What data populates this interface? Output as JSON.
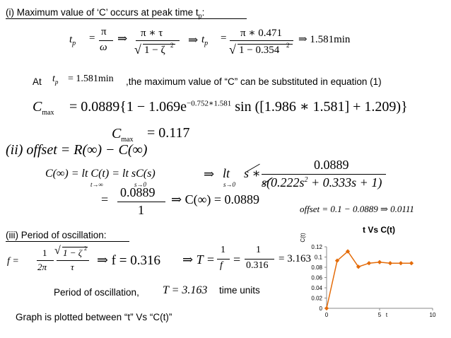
{
  "section1": {
    "heading": "(i) Maximum value of ‘C’ occurs at peak time t",
    "heading_sub": "p",
    "heading_end": ":"
  },
  "eq1": {
    "tp": "t",
    "tp_sub": "p",
    "eq": "=",
    "pi": "π",
    "omega": "ω",
    "arrow": "⇒",
    "pi_tau": "π ∗ τ",
    "one_minus_zeta": "1 − ζ",
    "two": "2"
  },
  "eq2": {
    "arrow": "⇒",
    "tp": "t",
    "tp_sub": "p",
    "eq": "=",
    "numerator": "π ∗ 0.471",
    "denominator": "1 − 0.354",
    "two": "2",
    "result": "⇒ 1.581min"
  },
  "at_line": {
    "at": "At",
    "tp": "t",
    "tp_sub": "p",
    "value": "= 1.581min",
    "text": ",the maximum value of “C” can be substituted in equation (1)"
  },
  "cmax_eq": {
    "c": "C",
    "sub": "max",
    "body": "= 0.0889{1 − 1.069e",
    "exponent": "−0.752∗1.581",
    "tail": " sin ([1.986 ∗ 1.581] + 1.209)}"
  },
  "cmax_val": {
    "c": "C",
    "sub": "max",
    "value": "= 0.117"
  },
  "offset_eq": {
    "text": "(ii) offset = R(∞) − C(∞)"
  },
  "cinf_eq": {
    "left": "C(∞) = lt C(t) = lt sC(s)",
    "lim1": "t→∞",
    "lim2": "s→0",
    "arrow": "⇒",
    "lt": "lt",
    "lim3": "s→0",
    "s_star": "s ∗",
    "numerator": "0.0889",
    "denominator": "s(0.222s",
    "denominator_sq": "2",
    "denominator_tail": " + 0.333s + 1)"
  },
  "cinf_result": {
    "eq": "=",
    "numerator": "0.0889",
    "denominator": "1",
    "result": "⇒ C(∞) = 0.0889"
  },
  "offset_result": {
    "text": "offset = 0.1 − 0.0889 ⇒ 0.0111"
  },
  "section3": {
    "heading": "(iii) Period of oscillation:"
  },
  "freq_eq": {
    "f": "f =",
    "one": "1",
    "two_pi": "2π",
    "root": "1 − ζ",
    "two": "2",
    "tau": "τ",
    "result": "⇒ f = 0.316"
  },
  "period_eq": {
    "arrow": "⇒ T =",
    "one_a": "1",
    "f": "f",
    "eq": "=",
    "one_b": "1",
    "den": "0.316",
    "result": "= 3.163"
  },
  "period_line": {
    "label": "Period of oscillation,",
    "value": "T = 3.163",
    "units": "time units"
  },
  "footer": {
    "text": "Graph is plotted between “t” Vs “C(t)”"
  },
  "chart_data": {
    "type": "line",
    "title": "t Vs C(t)",
    "xlabel": "t",
    "ylabel": "C(t)",
    "x": [
      0,
      1,
      2,
      3,
      4,
      5,
      6,
      7,
      8
    ],
    "y": [
      0,
      0.093,
      0.111,
      0.081,
      0.088,
      0.09,
      0.088,
      0.088,
      0.088
    ],
    "xlim": [
      0,
      10
    ],
    "ylim": [
      0,
      0.12
    ],
    "xticks": [
      0,
      5,
      10
    ],
    "yticks": [
      0,
      0.02,
      0.04,
      0.06,
      0.08,
      0.1,
      0.12
    ],
    "line_color": "#e46c0a",
    "marker_color": "#e46c0a",
    "grid": false,
    "legend": "none"
  }
}
